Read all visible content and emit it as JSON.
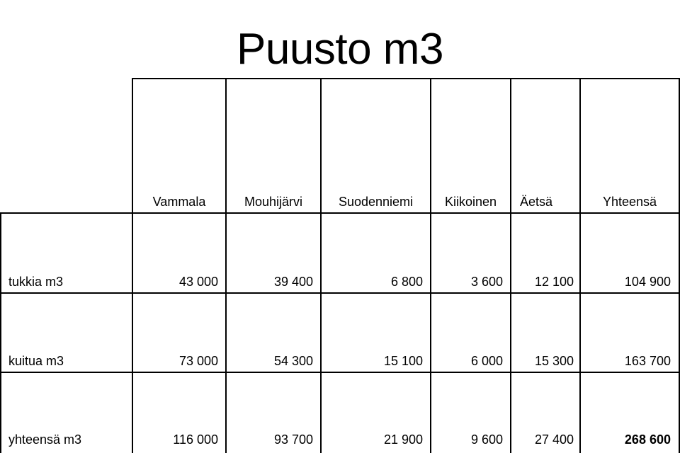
{
  "title": "Puusto m3",
  "table": {
    "columns": [
      "Vammala",
      "Mouhijärvi",
      "Suodenniemi",
      "Kiikoinen",
      "Äetsä",
      "Yhteensä"
    ],
    "rows": [
      {
        "label": "tukkia m3",
        "values": [
          "43 000",
          "39 400",
          "6 800",
          "3 600",
          "12 100",
          "104 900"
        ]
      },
      {
        "label": "kuitua m3",
        "values": [
          "73 000",
          "54 300",
          "15 100",
          "6 000",
          "15 300",
          "163 700"
        ]
      },
      {
        "label": "yhteensä m3",
        "values": [
          "116 000",
          "93 700",
          "21 900",
          "9 600",
          "27 400",
          "268 600"
        ]
      }
    ]
  }
}
